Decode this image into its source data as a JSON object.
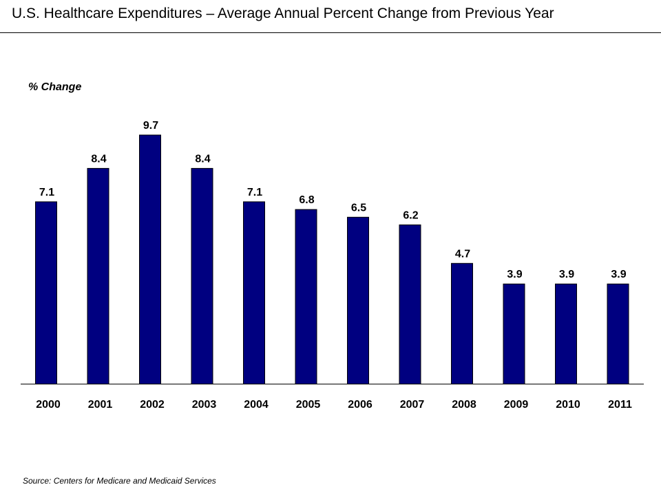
{
  "header": {
    "title": "U.S. Healthcare Expenditures – Average Annual Percent Change from Previous Year"
  },
  "footer": {
    "source": "Source: Centers for Medicare and Medicaid Services"
  },
  "colors": {
    "bar": "#000080",
    "bar_outline": "#000000"
  },
  "chart_data": {
    "type": "bar",
    "title": "U.S. Healthcare Expenditures – Average Annual Percent Change from Previous Year",
    "xlabel": "",
    "ylabel": "% Change",
    "categories": [
      "2000",
      "2001",
      "2002",
      "2003",
      "2004",
      "2005",
      "2006",
      "2007",
      "2008",
      "2009",
      "2010",
      "2011"
    ],
    "values": [
      7.1,
      8.4,
      9.7,
      8.4,
      7.1,
      6.8,
      6.5,
      6.2,
      4.7,
      3.9,
      3.9,
      3.9
    ],
    "data_labels": [
      "7.1",
      "8.4",
      "9.7",
      "8.4",
      "7.1",
      "6.8",
      "6.5",
      "6.2",
      "4.7",
      "3.9",
      "3.9",
      "3.9"
    ],
    "ylim": [
      0,
      9.7
    ],
    "grid": false,
    "legend": "none",
    "source": "Source: Centers for Medicare and Medicaid Services"
  }
}
